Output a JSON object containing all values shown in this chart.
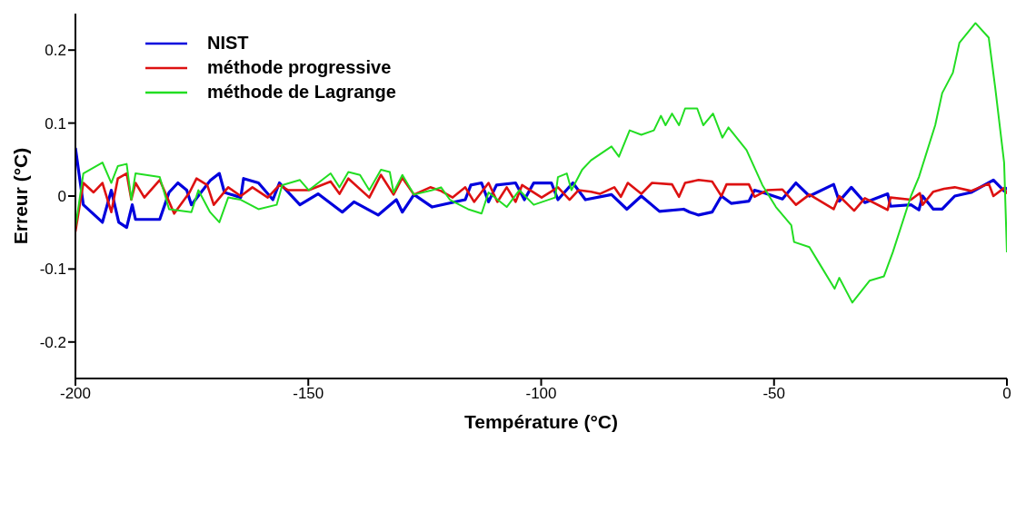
{
  "chart_data": {
    "type": "line",
    "xlabel": "Température (°C)",
    "ylabel": "Erreur (°C)",
    "xlim": [
      -200,
      0
    ],
    "xticks": [
      -200,
      -150,
      -100,
      -50,
      0
    ],
    "ylim": [
      -0.25,
      0.25
    ],
    "yticks": [
      -0.2,
      -0.1,
      0,
      0.1,
      0.2
    ],
    "grid": false,
    "legend": "top left",
    "marker": "none",
    "line_style": "solid",
    "series": [
      {
        "name": "NIST",
        "color": "#0000dd",
        "x": [
          -200,
          -198.3,
          -194.2,
          -192.3,
          -190.7,
          -189,
          -187.8,
          -187.1,
          -181.9,
          -179.9,
          -178,
          -176.1,
          -175.1,
          -171.1,
          -169.1,
          -168,
          -164.5,
          -163.9,
          -160.7,
          -157.6,
          -156.2,
          -151.8,
          -147.9,
          -142.7,
          -140.2,
          -135,
          -131.1,
          -129.8,
          -127.3,
          -123.4,
          -116.3,
          -115.1,
          -112.8,
          -111.3,
          -109.6,
          -105.5,
          -103.6,
          -101.6,
          -97.8,
          -96.4,
          -93.2,
          -90.5,
          -84.9,
          -81.6,
          -78.5,
          -74.6,
          -69.4,
          -68.1,
          -66.2,
          -63.3,
          -61.3,
          -59.2,
          -55.4,
          -54.2,
          -52,
          -48.2,
          -45.3,
          -42.4,
          -37.2,
          -36,
          -33.4,
          -30.5,
          -25.6,
          -25,
          -20.6,
          -18.9,
          -18.1,
          -15.8,
          -13.9,
          -11.2,
          -7.7,
          -2.9,
          -0.6,
          0
        ],
        "values": [
          0.066,
          -0.012,
          -0.036,
          0.008,
          -0.036,
          -0.043,
          -0.012,
          -0.032,
          -0.032,
          0.005,
          0.018,
          0.008,
          -0.012,
          0.021,
          0.031,
          0.005,
          -0.002,
          0.024,
          0.018,
          -0.005,
          0.018,
          -0.012,
          0.003,
          -0.022,
          -0.008,
          -0.026,
          -0.005,
          -0.022,
          0.002,
          -0.015,
          -0.005,
          0.015,
          0.018,
          -0.008,
          0.015,
          0.018,
          -0.005,
          0.018,
          0.018,
          -0.005,
          0.018,
          -0.005,
          0.002,
          -0.018,
          0,
          -0.021,
          -0.018,
          -0.022,
          -0.026,
          -0.022,
          0,
          -0.01,
          -0.007,
          0.008,
          0.004,
          -0.004,
          0.018,
          0,
          0.016,
          -0.007,
          0.012,
          -0.009,
          0.003,
          -0.014,
          -0.012,
          -0.019,
          0,
          -0.018,
          -0.018,
          0,
          0.005,
          0.022,
          0.007,
          0.012
        ]
      },
      {
        "name": "méthode progressive",
        "color": "#dd1111",
        "x": [
          -200,
          -198.3,
          -196.1,
          -194.2,
          -192.3,
          -190.9,
          -189,
          -188,
          -187.1,
          -185.2,
          -181.9,
          -178.8,
          -175.5,
          -174,
          -171.7,
          -170.3,
          -167.2,
          -164.5,
          -162,
          -158.7,
          -156.2,
          -154.3,
          -149.9,
          -145.2,
          -143.3,
          -141.4,
          -136.9,
          -134.4,
          -131.7,
          -129.8,
          -127.3,
          -123.8,
          -121.5,
          -119,
          -116.3,
          -114.4,
          -111.3,
          -109.4,
          -107.4,
          -105.5,
          -104.1,
          -99.9,
          -96.4,
          -93.9,
          -92,
          -89.3,
          -87.4,
          -84.3,
          -82.9,
          -81.4,
          -78.5,
          -76.2,
          -71.9,
          -70.4,
          -69.1,
          -66.2,
          -63.3,
          -61.3,
          -60.2,
          -55.4,
          -54.2,
          -51.5,
          -48.2,
          -45.3,
          -42.4,
          -37.2,
          -36,
          -32.8,
          -30.5,
          -25.6,
          -25,
          -20.6,
          -18.7,
          -18.1,
          -15.8,
          -13.5,
          -11.2,
          -7.7,
          -3.9,
          -2.9,
          -0.6,
          0
        ],
        "values": [
          -0.049,
          0.018,
          0.005,
          0.018,
          -0.022,
          0.024,
          0.031,
          -0.005,
          0.018,
          -0.002,
          0.022,
          -0.024,
          0.005,
          0.024,
          0.015,
          -0.012,
          0.012,
          0,
          0.012,
          -0.002,
          0.015,
          0.008,
          0.008,
          0.02,
          0.003,
          0.024,
          -0.002,
          0.029,
          0.002,
          0.025,
          0.002,
          0.012,
          0.007,
          -0.002,
          0.012,
          -0.008,
          0.018,
          -0.008,
          0.012,
          -0.008,
          0.015,
          -0.002,
          0.012,
          -0.005,
          0.008,
          0.006,
          0.003,
          0.012,
          -0.001,
          0.018,
          0.003,
          0.018,
          0.016,
          -0.001,
          0.018,
          0.022,
          0.02,
          0,
          0.016,
          0.016,
          -0.001,
          0.008,
          0.009,
          -0.012,
          0.002,
          -0.018,
          0,
          -0.02,
          -0.003,
          -0.019,
          -0.002,
          -0.005,
          0.004,
          -0.012,
          0.006,
          0.01,
          0.012,
          0.007,
          0.017,
          0,
          0.011,
          0.003
        ]
      },
      {
        "name": "méthode de Lagrange",
        "color": "#22dd22",
        "x": [
          -200,
          -198.3,
          -194.2,
          -192.3,
          -190.9,
          -189,
          -188,
          -187.1,
          -181.9,
          -179.9,
          -175.1,
          -173.6,
          -171.1,
          -169.1,
          -167.2,
          -164.5,
          -160.7,
          -156.8,
          -155.6,
          -151.8,
          -149.9,
          -145.2,
          -143.3,
          -141.4,
          -138.9,
          -136.9,
          -134.4,
          -132.5,
          -131.7,
          -129.8,
          -127.3,
          -123.4,
          -121.5,
          -119.6,
          -115.7,
          -112.8,
          -111.3,
          -107.4,
          -104.7,
          -101.6,
          -97,
          -96.4,
          -94.5,
          -93.5,
          -91.2,
          -89.3,
          -84.9,
          -83.3,
          -81,
          -78.5,
          -75.8,
          -74.3,
          -73.3,
          -71.9,
          -70.4,
          -69.1,
          -66.5,
          -65.2,
          -63.1,
          -61.1,
          -59.8,
          -55.9,
          -52.5,
          -49.6,
          -46.3,
          -45.7,
          -42.4,
          -40.5,
          -37,
          -36,
          -33.2,
          -29.5,
          -26.4,
          -24.5,
          -20.6,
          -18.9,
          -15.4,
          -13.9,
          -11.6,
          -10.2,
          -6.75,
          -3.9,
          -2.5,
          -0.6,
          0
        ],
        "values": [
          -0.043,
          0.031,
          0.046,
          0.018,
          0.041,
          0.044,
          -0.005,
          0.031,
          0.026,
          -0.018,
          -0.022,
          0.008,
          -0.022,
          -0.036,
          -0.002,
          -0.005,
          -0.018,
          -0.012,
          0.015,
          0.022,
          0.008,
          0.031,
          0.012,
          0.033,
          0.029,
          0.008,
          0.036,
          0.033,
          0.005,
          0.029,
          0.002,
          0.008,
          0.012,
          -0.005,
          -0.018,
          -0.024,
          0.005,
          -0.015,
          0.008,
          -0.012,
          -0.002,
          0.026,
          0.031,
          0.008,
          0.036,
          0.049,
          0.068,
          0.054,
          0.09,
          0.084,
          0.09,
          0.11,
          0.097,
          0.113,
          0.097,
          0.12,
          0.12,
          0.097,
          0.113,
          0.08,
          0.094,
          0.063,
          0.015,
          -0.015,
          -0.04,
          -0.063,
          -0.07,
          -0.09,
          -0.127,
          -0.112,
          -0.146,
          -0.116,
          -0.11,
          -0.077,
          0,
          0.026,
          0.097,
          0.141,
          0.169,
          0.21,
          0.237,
          0.217,
          0.148,
          0.046,
          -0.077
        ]
      }
    ]
  }
}
